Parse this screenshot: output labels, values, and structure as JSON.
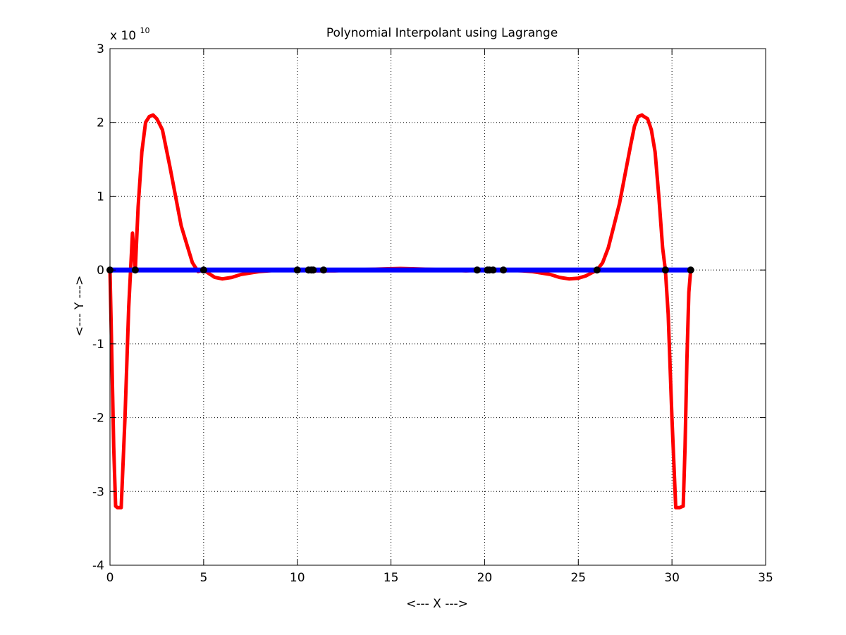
{
  "chart_data": {
    "type": "line",
    "title": "Polynomial Interpolant using Lagrange",
    "xlabel": "<--- X --->",
    "ylabel": "<--- Y --->",
    "xlim": [
      0,
      35
    ],
    "ylim": [
      -4,
      3
    ],
    "x_ticks": [
      0,
      5,
      10,
      15,
      20,
      25,
      30,
      35
    ],
    "y_ticks": [
      -4,
      -3,
      -2,
      -1,
      0,
      1,
      2,
      3
    ],
    "y_exponent_base": "x 10",
    "y_exponent_power": "10",
    "grid": true,
    "legend": "none",
    "colors": {
      "interpolant": "#ff0000",
      "baseline": "#0000ff",
      "nodes": "#000000"
    },
    "series": [
      {
        "role": "interpolant",
        "x": [
          0,
          0.1,
          0.2,
          0.3,
          0.4,
          0.6,
          0.8,
          1.0,
          1.2,
          1.35,
          1.5,
          1.7,
          1.9,
          2.1,
          2.3,
          2.5,
          2.6,
          2.8,
          3.0,
          3.2,
          3.5,
          3.8,
          4.1,
          4.4,
          4.7,
          5.0,
          5.3,
          5.6,
          6.0,
          6.5,
          7.0,
          7.5,
          8.0,
          8.5,
          9.0,
          10.0,
          11.0,
          12.0,
          13.0,
          14.0,
          15.5,
          17.0,
          18.0,
          19.0,
          20.0,
          21.0,
          22.0,
          22.5,
          23.0,
          23.5,
          24.0,
          24.5,
          25.0,
          25.4,
          25.7,
          26.0,
          26.3,
          26.6,
          26.9,
          27.2,
          27.5,
          27.8,
          28.0,
          28.2,
          28.4,
          28.5,
          28.7,
          28.9,
          29.1,
          29.3,
          29.5,
          29.65,
          29.8,
          30.0,
          30.2,
          30.4,
          30.6,
          30.7,
          30.8,
          30.9,
          31.0
        ],
        "y": [
          0,
          -1.2,
          -2.4,
          -3.2,
          -3.22,
          -3.22,
          -2.0,
          -0.5,
          0.5,
          0,
          0.85,
          1.6,
          2.0,
          2.08,
          2.1,
          2.05,
          2.0,
          1.9,
          1.65,
          1.4,
          1.0,
          0.6,
          0.35,
          0.1,
          -0.02,
          0,
          -0.05,
          -0.1,
          -0.12,
          -0.1,
          -0.06,
          -0.04,
          -0.02,
          -0.01,
          0,
          0,
          -0.01,
          -0.01,
          0,
          0.01,
          0.02,
          0.01,
          0,
          -0.01,
          0,
          0,
          -0.01,
          -0.02,
          -0.04,
          -0.06,
          -0.1,
          -0.12,
          -0.11,
          -0.08,
          -0.04,
          0,
          0.1,
          0.3,
          0.6,
          0.9,
          1.3,
          1.7,
          1.95,
          2.08,
          2.1,
          2.08,
          2.05,
          1.9,
          1.6,
          1.0,
          0.3,
          0,
          -0.6,
          -2.0,
          -3.22,
          -3.22,
          -3.2,
          -2.4,
          -1.2,
          -0.3,
          0
        ]
      },
      {
        "role": "baseline",
        "x": [
          0,
          31
        ],
        "y": [
          0,
          0
        ]
      },
      {
        "role": "nodes",
        "x": [
          0,
          1.35,
          5.0,
          10.0,
          10.6,
          10.75,
          10.85,
          11.4,
          19.6,
          20.15,
          20.25,
          20.45,
          21.0,
          26.0,
          29.65,
          31.0
        ],
        "y": [
          0,
          0,
          0,
          0,
          0,
          0,
          0,
          0,
          0,
          0,
          0,
          0,
          0,
          0,
          0,
          0
        ]
      }
    ]
  }
}
